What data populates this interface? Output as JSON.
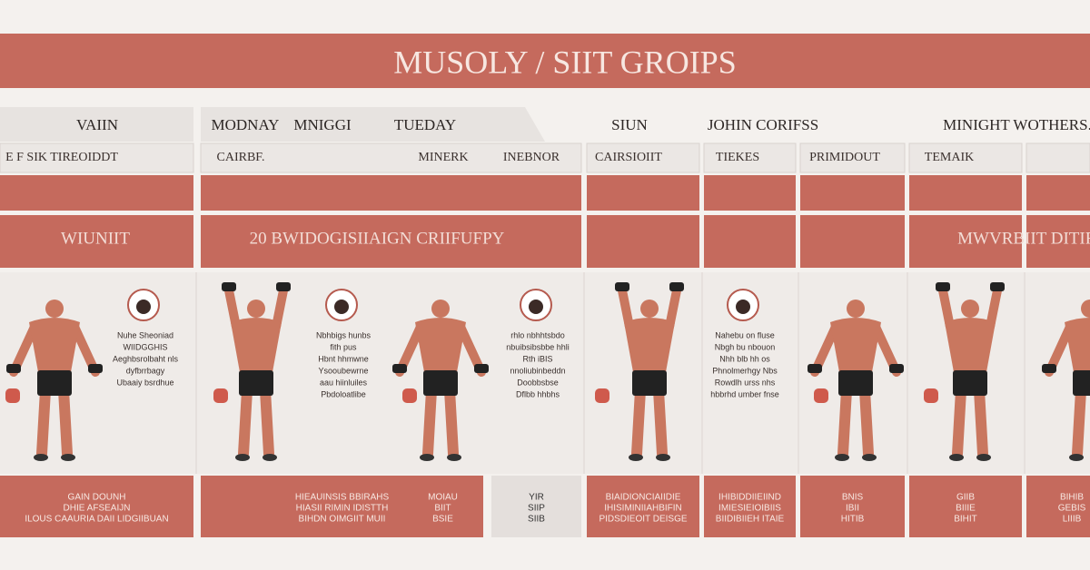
{
  "header": {
    "title": "MUSOLY / SIIT GROIPS"
  },
  "header_row": [
    "VAIIN",
    "MODNAY",
    "MNIGGI",
    "TUEDAY",
    "SIUN",
    "JOHIN CORIFSS",
    "MINIGHT WOTHERS."
  ],
  "sub_row": [
    "E F SIK TIREOIDDT",
    "CAIRBF.",
    "MINERK",
    "INEBNOR",
    "CAIRSIOIIT",
    "TIEKES",
    "PRIMIDOUT",
    "TEMAIK"
  ],
  "band_labels": [
    "WIUNIIT",
    "20 BWIDOGISIIAIGN CRIIFUFPY",
    "MWVRBIIT DITIFS"
  ],
  "notes": [
    [
      "Nuhe Sheoniad",
      "WIIDGGHIS",
      "Aeghbsrolbaht nls",
      "dyfbrrbagy",
      "Ubaaiy bsrdhue"
    ],
    [
      "Nbhbigs hunbs",
      "fith pus",
      "Hbnt hhmwne",
      "Ysooubewrne",
      "aau hiinluiles",
      "Pbdoloatlibe"
    ],
    [
      "rhlo nbhhtsbdo",
      "nbuibsibsbbe hhli",
      "Rth iBIS",
      "nnoliubinbeddn",
      "Doobbsbse",
      "Dflbb hhbhs"
    ],
    [
      "Nahebu on fluse",
      "Nbgh bu nbouon",
      "Nhh blb hh os",
      "Phnolmerhgy Nbs",
      "Rowdlh urss nhs",
      "hbbrhd umber fnse"
    ]
  ],
  "footers": [
    [
      "GAIN DOUNH",
      "DHIE AFSEAIJN",
      "ILOUS CAAURIA DAII LIDGIIBUAN"
    ],
    [
      "HIEAUINSIS BBIRAHS",
      "HIASII RIMIN IDISTTH",
      "BIHDN OIMGIIT MUII"
    ],
    [
      "MOIAU",
      "BIIT",
      "BSIE"
    ],
    [
      "YIR",
      "SIIP",
      "SIIB"
    ],
    [
      "BIAIDIONCIAIIDIE",
      "IHISIMINIIAHBIFIN",
      "PIDSDIEOIT DEISGE"
    ],
    [
      "IHIBIDDIIEIIND",
      "IMIESIEIOIBIIS",
      "BIIDIBIIEH ITAIE"
    ],
    [
      "BNIS",
      "IBII",
      "HITIB"
    ],
    [
      "GIIB",
      "BIIIE",
      "BIHIT"
    ],
    [
      "BIHIB",
      "GEBIS",
      "LIIIB"
    ]
  ]
}
